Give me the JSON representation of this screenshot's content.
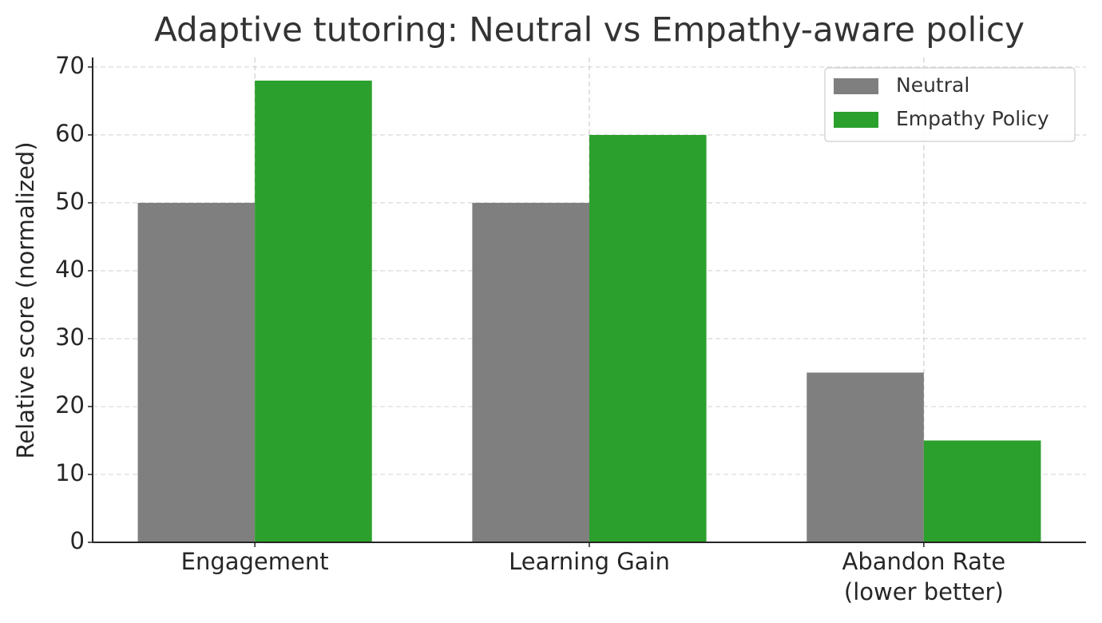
{
  "chart_data": {
    "type": "bar",
    "title": "Adaptive tutoring: Neutral vs Empathy-aware policy",
    "y_label": "Relative score (normalized)",
    "categories": [
      "Engagement",
      "Learning Gain",
      "Abandon Rate\n(lower better)"
    ],
    "series": [
      {
        "name": "Neutral",
        "color": "#7f7f7f",
        "values": [
          50,
          50,
          25
        ]
      },
      {
        "name": "Empathy Policy",
        "color": "#2ca02c",
        "values": [
          68,
          60,
          15
        ]
      }
    ],
    "ylim": [
      0,
      71.4
    ],
    "yticks": [
      0,
      10,
      20,
      30,
      40,
      50,
      60,
      70
    ],
    "grid": true,
    "legend": "upper right"
  }
}
